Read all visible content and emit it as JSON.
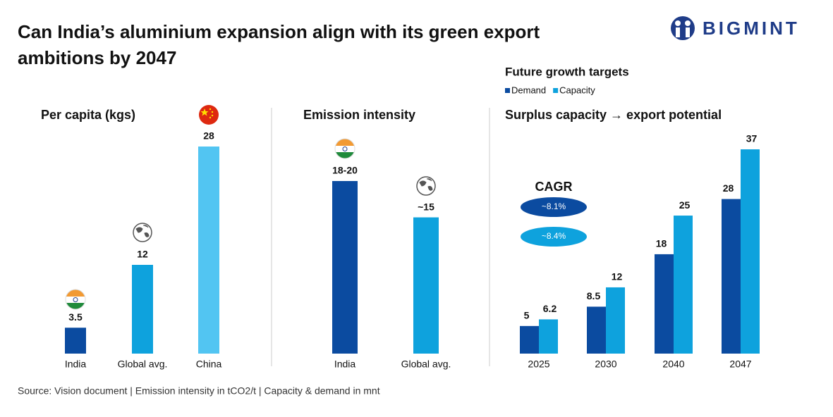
{
  "title": "Can India’s aluminium expansion align with its green export ambitions by 2047",
  "logo": "BIGMINT",
  "source": "Source: Vision document | Emission intensity in tCO2/t | Capacity & demand in mnt",
  "chart_data": [
    {
      "type": "bar",
      "title": "Per capita (kgs)",
      "categories": [
        "India",
        "Global avg.",
        "China"
      ],
      "values": [
        3.5,
        12,
        28
      ],
      "colors": [
        "#0b4ba0",
        "#0ea2dd",
        "#52c5f2"
      ]
    },
    {
      "type": "bar",
      "title": "Emission intensity",
      "categories": [
        "India",
        "Global avg."
      ],
      "values": [
        19,
        15
      ],
      "value_labels": [
        "18-20",
        "~15"
      ],
      "colors": [
        "#0b4ba0",
        "#0ea2dd"
      ]
    },
    {
      "type": "grouped_bar",
      "title": "Surplus capacity → export potential",
      "legend_title": "Future growth targets",
      "categories": [
        "2025",
        "2030",
        "2040",
        "2047"
      ],
      "series": [
        {
          "name": "Demand",
          "color": "#0b4ba0",
          "values": [
            5,
            8.5,
            18,
            28
          ]
        },
        {
          "name": "Capacity",
          "color": "#0ea2dd",
          "values": [
            6.2,
            12,
            25,
            37
          ]
        }
      ],
      "annotation": {
        "title": "CAGR",
        "items": [
          {
            "label": "~8.1%",
            "color": "#0b4ba0"
          },
          {
            "label": "~8.4%",
            "color": "#0ea2dd"
          }
        ]
      }
    }
  ]
}
